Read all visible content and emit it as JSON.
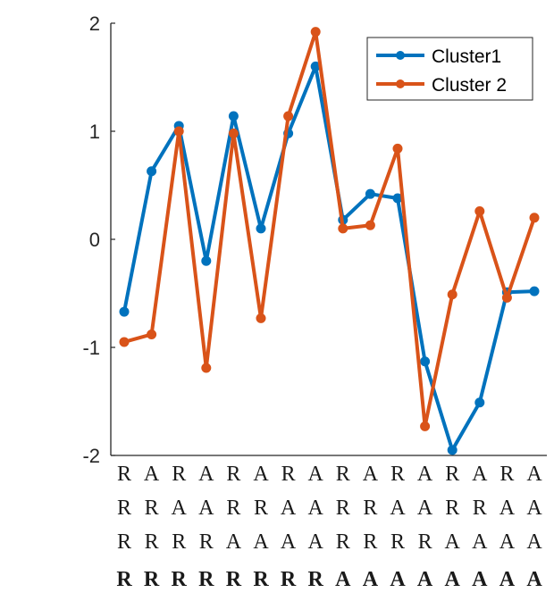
{
  "chart_data": {
    "type": "line",
    "x": [
      1,
      2,
      3,
      4,
      5,
      6,
      7,
      8,
      9,
      10,
      11,
      12,
      13,
      14,
      15,
      16
    ],
    "category_rows": [
      [
        "R",
        "A",
        "R",
        "A",
        "R",
        "A",
        "R",
        "A",
        "R",
        "A",
        "R",
        "A",
        "R",
        "A",
        "R",
        "A"
      ],
      [
        "R",
        "R",
        "A",
        "A",
        "R",
        "R",
        "A",
        "A",
        "R",
        "R",
        "A",
        "A",
        "R",
        "R",
        "A",
        "A"
      ],
      [
        "R",
        "R",
        "R",
        "R",
        "A",
        "A",
        "A",
        "A",
        "R",
        "R",
        "R",
        "R",
        "A",
        "A",
        "A",
        "A"
      ],
      [
        "R",
        "R",
        "R",
        "R",
        "R",
        "R",
        "R",
        "R",
        "A",
        "A",
        "A",
        "A",
        "A",
        "A",
        "A",
        "A"
      ]
    ],
    "bold_row": 3,
    "series": [
      {
        "name": "Cluster1",
        "color": "#0072bd",
        "values": [
          -0.67,
          0.63,
          1.05,
          -0.2,
          1.14,
          0.1,
          0.98,
          1.6,
          0.18,
          0.42,
          0.38,
          -1.13,
          -1.95,
          -1.51,
          -0.49,
          -0.48
        ]
      },
      {
        "name": "Cluster 2",
        "color": "#d95319",
        "values": [
          -0.95,
          -0.88,
          1.0,
          -1.19,
          0.98,
          -0.73,
          1.14,
          1.92,
          0.1,
          0.13,
          0.84,
          -1.73,
          -0.51,
          0.26,
          -0.54,
          0.2
        ]
      }
    ],
    "ylim": [
      -2,
      2
    ],
    "yticks": [
      -2,
      -1,
      0,
      1,
      2
    ],
    "title": "",
    "xlabel": "",
    "ylabel": "",
    "legend": "top-right",
    "grid": false
  }
}
